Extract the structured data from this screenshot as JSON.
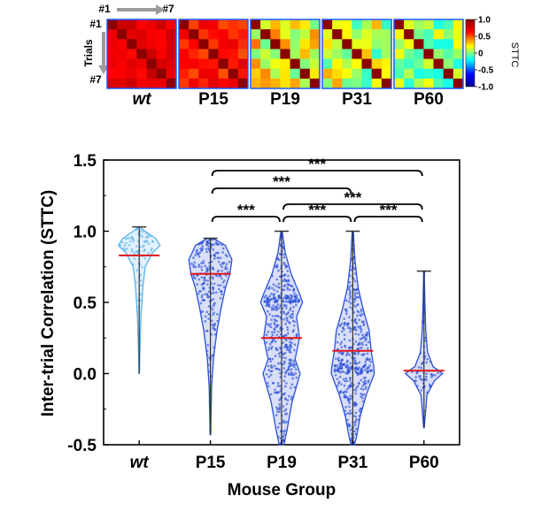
{
  "heatmaps": {
    "trial_first": "#1",
    "trial_last": "#7",
    "trials_label": "Trials",
    "panels": [
      "wt",
      "P15",
      "P19",
      "P31",
      "P60"
    ],
    "colorbar": {
      "label": "STTC",
      "ticks": [
        "1.0",
        "0.5",
        "0",
        "-0.5",
        "-1.0"
      ],
      "range": [
        -1.0,
        1.0
      ],
      "colors": [
        "#00008f",
        "#0000ff",
        "#00ffff",
        "#ffff00",
        "#ff0000",
        "#8b0000"
      ]
    }
  },
  "chart_data": {
    "type": "violin",
    "title": "",
    "xlabel": "Mouse Group",
    "ylabel": "Inter-trial Correlation (STTC)",
    "categories": [
      "wt",
      "P15",
      "P19",
      "P31",
      "P60"
    ],
    "ylim": [
      -0.5,
      1.5
    ],
    "yticks": [
      "1.5",
      "1.0",
      "0.5",
      "0.0",
      "-0.5"
    ],
    "means": [
      0.83,
      0.7,
      0.25,
      0.16,
      0.02
    ],
    "ranges": [
      [
        0.0,
        1.03
      ],
      [
        -0.43,
        0.95
      ],
      [
        -0.5,
        1.0
      ],
      [
        -0.5,
        1.0
      ],
      [
        -0.38,
        0.72
      ]
    ],
    "colors": {
      "wt": "#5ab4ec",
      "groups": "#2a4fd8",
      "mean": "#e0151b"
    },
    "significance": [
      {
        "from": "P15",
        "to": "P60",
        "label": "***"
      },
      {
        "from": "P15",
        "to": "P31",
        "label": "***"
      },
      {
        "from": "P19",
        "to": "P60",
        "label": "***"
      },
      {
        "from": "P15",
        "to": "P19",
        "label": "***"
      },
      {
        "from": "P19",
        "to": "P31",
        "label": "***"
      },
      {
        "from": "P31",
        "to": "P60",
        "label": "***"
      }
    ]
  }
}
